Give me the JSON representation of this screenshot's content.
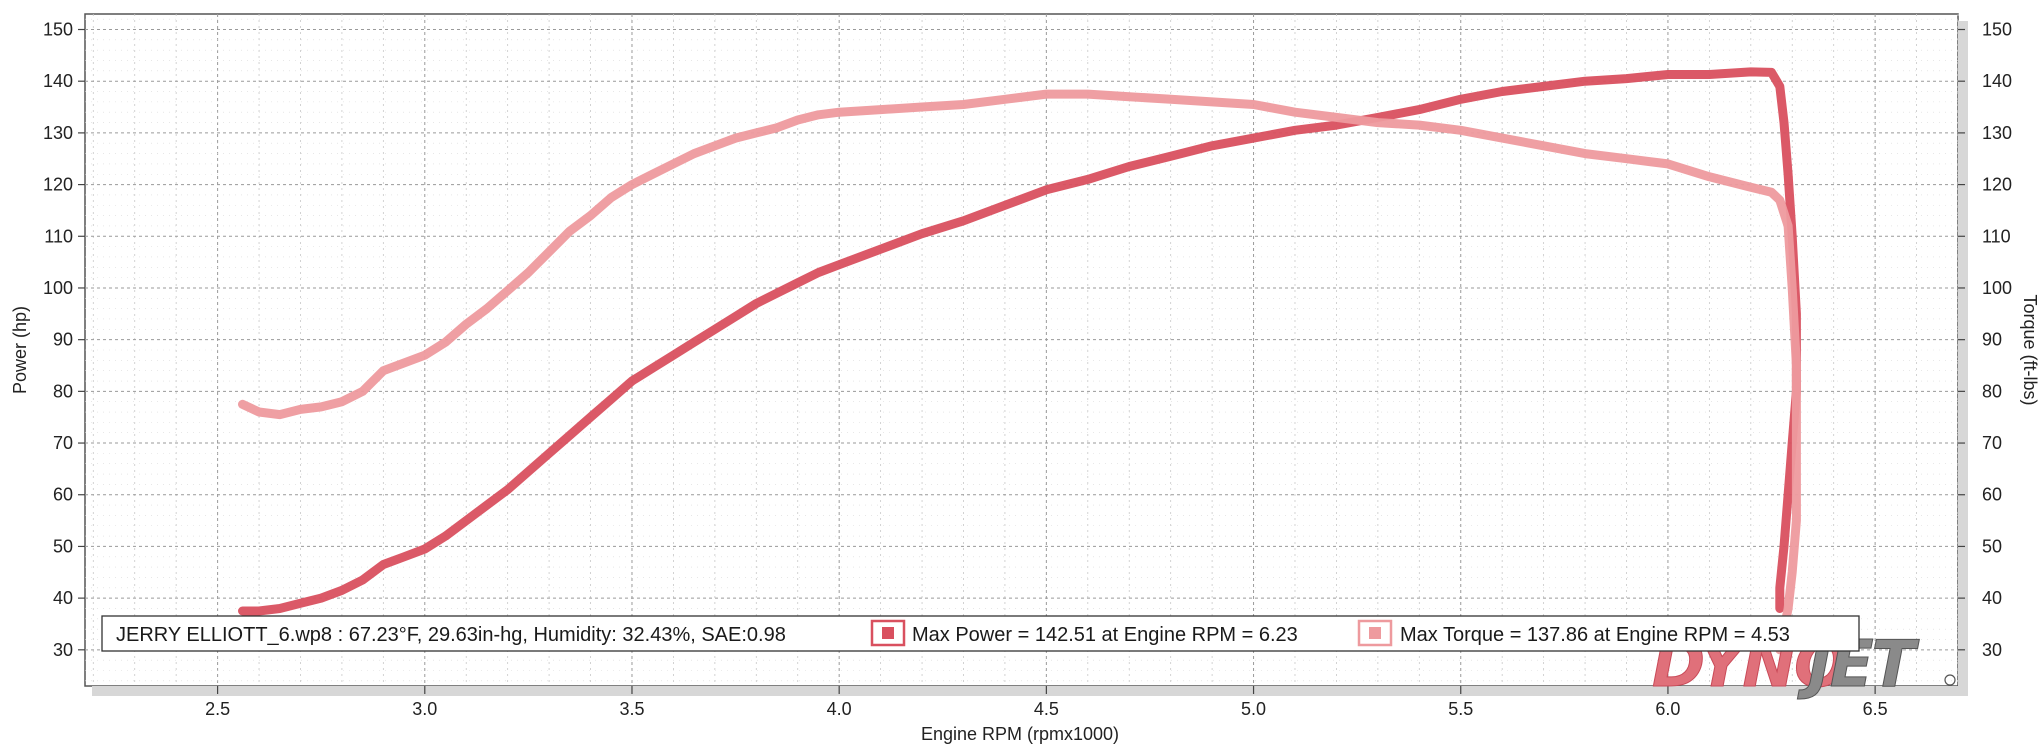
{
  "chart_data": {
    "type": "line",
    "xlabel": "Engine RPM (rpmx1000)",
    "ylabel": "Power (hp)",
    "y2label": "Torque (ft-lbs)",
    "xlim": [
      2.18,
      6.7
    ],
    "ylim": [
      23,
      153
    ],
    "y2lim": [
      23,
      153
    ],
    "xticks": [
      "2.5",
      "3.0",
      "3.5",
      "4.0",
      "4.5",
      "5.0",
      "5.5",
      "6.0",
      "6.5"
    ],
    "yticks": [
      "30",
      "40",
      "50",
      "60",
      "70",
      "80",
      "90",
      "100",
      "110",
      "120",
      "130",
      "140",
      "150"
    ],
    "y2ticks": [
      "30",
      "40",
      "50",
      "60",
      "70",
      "80",
      "90",
      "100",
      "110",
      "120",
      "130",
      "140",
      "150"
    ],
    "grid": true,
    "legend": {
      "run_info": "JERRY ELLIOTT_6.wp8 : 67.23°F, 29.63in-hg, Humidity: 32.43%, SAE:0.98",
      "max_power": "Max Power = 142.51 at Engine RPM = 6.23",
      "max_torque": "Max Torque = 137.86 at Engine RPM = 4.53",
      "placement": "bottom-left"
    },
    "series": [
      {
        "name": "Power",
        "axis": "left",
        "color": "#d9505f",
        "x": [
          2.56,
          2.6,
          2.65,
          2.7,
          2.75,
          2.8,
          2.85,
          2.9,
          2.95,
          3.0,
          3.05,
          3.1,
          3.15,
          3.2,
          3.25,
          3.3,
          3.35,
          3.4,
          3.45,
          3.5,
          3.55,
          3.6,
          3.65,
          3.7,
          3.75,
          3.8,
          3.85,
          3.9,
          3.95,
          4.0,
          4.1,
          4.2,
          4.3,
          4.4,
          4.5,
          4.6,
          4.7,
          4.8,
          4.9,
          5.0,
          5.1,
          5.2,
          5.3,
          5.4,
          5.5,
          5.6,
          5.7,
          5.8,
          5.9,
          6.0,
          6.1,
          6.2,
          6.25,
          6.27,
          6.28,
          6.29,
          6.3,
          6.31,
          6.31,
          6.3,
          6.29,
          6.28,
          6.27,
          6.27
        ],
        "y": [
          37.5,
          37.5,
          38,
          39,
          40,
          41.5,
          43.5,
          46.5,
          48,
          49.5,
          52,
          55,
          58,
          61,
          64.5,
          68,
          71.5,
          75,
          78.5,
          82,
          84.5,
          87,
          89.5,
          92,
          94.5,
          97,
          99,
          101,
          103,
          104.5,
          107.5,
          110.5,
          113,
          116,
          119,
          121,
          123.5,
          125.5,
          127.5,
          129,
          130.5,
          131.5,
          133,
          134.5,
          136.5,
          138,
          139,
          140,
          140.5,
          141.3,
          141.3,
          141.8,
          141.7,
          139,
          132,
          122,
          110,
          95,
          80,
          70,
          60,
          50,
          42,
          38
        ]
      },
      {
        "name": "Torque",
        "axis": "right",
        "color": "#ee9a9e",
        "x": [
          2.56,
          2.6,
          2.65,
          2.7,
          2.75,
          2.8,
          2.85,
          2.9,
          2.95,
          3.0,
          3.05,
          3.1,
          3.15,
          3.2,
          3.25,
          3.3,
          3.35,
          3.4,
          3.45,
          3.5,
          3.55,
          3.6,
          3.65,
          3.7,
          3.75,
          3.8,
          3.85,
          3.9,
          3.95,
          4.0,
          4.1,
          4.2,
          4.3,
          4.4,
          4.5,
          4.6,
          4.7,
          4.8,
          4.9,
          5.0,
          5.1,
          5.2,
          5.3,
          5.4,
          5.5,
          5.6,
          5.7,
          5.8,
          5.9,
          6.0,
          6.1,
          6.2,
          6.25,
          6.27,
          6.29,
          6.3,
          6.31,
          6.31,
          6.31,
          6.3,
          6.29,
          6.28,
          6.27
        ],
        "y": [
          77.5,
          76,
          75.5,
          76.5,
          77,
          78,
          80,
          84,
          85.5,
          87,
          89.5,
          93,
          96,
          99.5,
          103,
          107,
          111,
          114,
          117.5,
          120,
          122,
          124,
          126,
          127.5,
          129,
          130,
          131,
          132.5,
          133.5,
          134,
          134.5,
          135,
          135.5,
          136.5,
          137.5,
          137.5,
          137,
          136.5,
          136,
          135.5,
          134,
          133,
          132,
          131.5,
          130.5,
          129,
          127.5,
          126,
          125,
          124,
          121.5,
          119.5,
          118.5,
          117,
          112,
          100,
          85,
          70,
          55,
          45,
          38,
          34,
          30
        ]
      }
    ]
  }
}
